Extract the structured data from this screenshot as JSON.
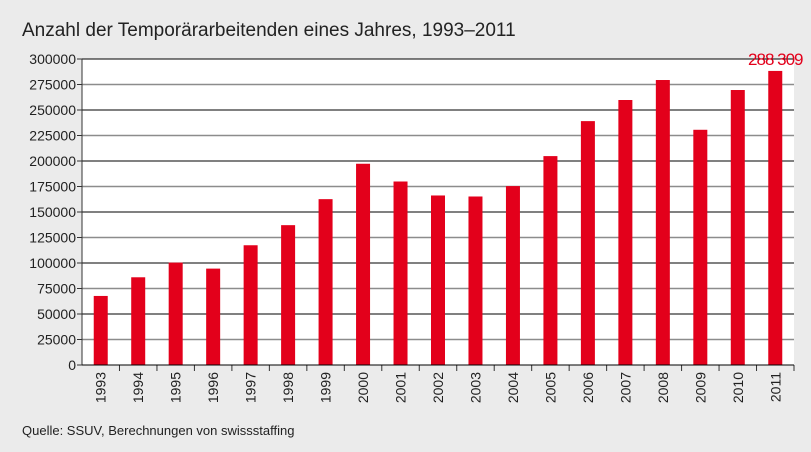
{
  "chart_data": {
    "type": "bar",
    "title": "Anzahl der Temporärarbeitenden eines Jahres, 1993–2011",
    "source": "Quelle: SSUV, Berechnungen von swissstaffing",
    "categories": [
      "1993",
      "1994",
      "1995",
      "1996",
      "1997",
      "1998",
      "1999",
      "2000",
      "2001",
      "2002",
      "2003",
      "2004",
      "2005",
      "2006",
      "2007",
      "2008",
      "2009",
      "2010",
      "2011"
    ],
    "values": [
      67700,
      86000,
      100400,
      94500,
      117400,
      137100,
      162600,
      197300,
      179900,
      166200,
      165200,
      175400,
      204800,
      239100,
      259800,
      279400,
      230600,
      269600,
      288309
    ],
    "data_labels": [
      {
        "category": "2011",
        "text": "288 309"
      }
    ],
    "ylim": [
      0,
      300000
    ],
    "yticks": [
      0,
      25000,
      50000,
      75000,
      100000,
      125000,
      150000,
      175000,
      200000,
      225000,
      250000,
      275000,
      300000
    ],
    "xlabel": "",
    "ylabel": "",
    "grid": true,
    "colors": {
      "bar": "#e3001b",
      "grid_major": "#000000",
      "grid_minor": "#8c8c8c",
      "background": "#ebebeb",
      "plot": "#ffffff"
    }
  }
}
